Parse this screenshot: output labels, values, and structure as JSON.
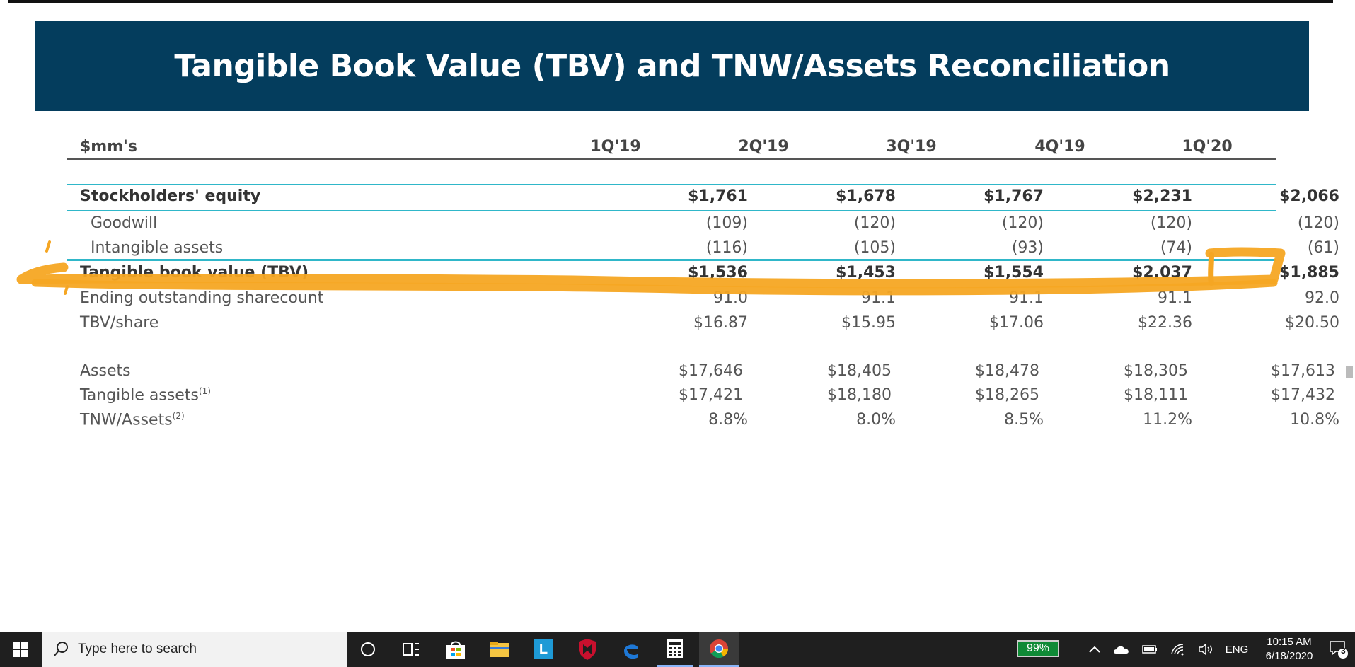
{
  "slide": {
    "title": "Tangible Book Value (TBV) and TNW/Assets Reconciliation"
  },
  "table": {
    "header": {
      "label": "$mm's",
      "periods": [
        "1Q'19",
        "2Q'19",
        "3Q'19",
        "4Q'19",
        "1Q'20"
      ]
    },
    "rows": [
      {
        "label": "Stockholders' equity",
        "values": [
          "$1,761",
          "$1,678",
          "$1,767",
          "$2,231",
          "$2,066"
        ]
      },
      {
        "label": "Goodwill",
        "values": [
          "(109)",
          "(120)",
          "(120)",
          "(120)",
          "(120)"
        ]
      },
      {
        "label": "Intangible assets",
        "values": [
          "(116)",
          "(105)",
          "(93)",
          "(74)",
          "(61)"
        ]
      },
      {
        "label": "Tangible book value (TBV)",
        "values": [
          "$1,536",
          "$1,453",
          "$1,554",
          "$2,037",
          "$1,885"
        ]
      },
      {
        "label": "Ending outstanding sharecount",
        "values": [
          "91.0",
          "91.1",
          "91.1",
          "91.1",
          "92.0"
        ]
      },
      {
        "label": "TBV/share",
        "values": [
          "$16.87",
          "$15.95",
          "$17.06",
          "$22.36",
          "$20.50"
        ]
      },
      {
        "label": "Assets",
        "values": [
          "$17,646",
          "$18,405",
          "$18,478",
          "$18,305",
          "$17,613"
        ]
      },
      {
        "label": "Tangible assets",
        "sup": "(1)",
        "values": [
          "$17,421",
          "$18,180",
          "$18,265",
          "$18,111",
          "$17,432"
        ]
      },
      {
        "label": "TNW/Assets",
        "sup": "(2)",
        "values": [
          "8.8%",
          "8.0%",
          "8.5%",
          "11.2%",
          "10.8%"
        ]
      }
    ]
  },
  "colors": {
    "banner": "#043d5d",
    "rule_teal": "#2fb7c9",
    "highlight": "#f5a623",
    "battery": "#0f8a36"
  },
  "taskbar": {
    "search_placeholder": "Type here to search",
    "battery": "99%",
    "language": "ENG",
    "time": "10:15 AM",
    "date": "6/18/2020",
    "notifications": "3",
    "apps": [
      "cortana-icon",
      "task-view-icon",
      "store-icon",
      "file-explorer-icon",
      "l-app-icon",
      "mcafee-icon",
      "edge-icon",
      "calculator-icon",
      "chrome-icon"
    ]
  }
}
